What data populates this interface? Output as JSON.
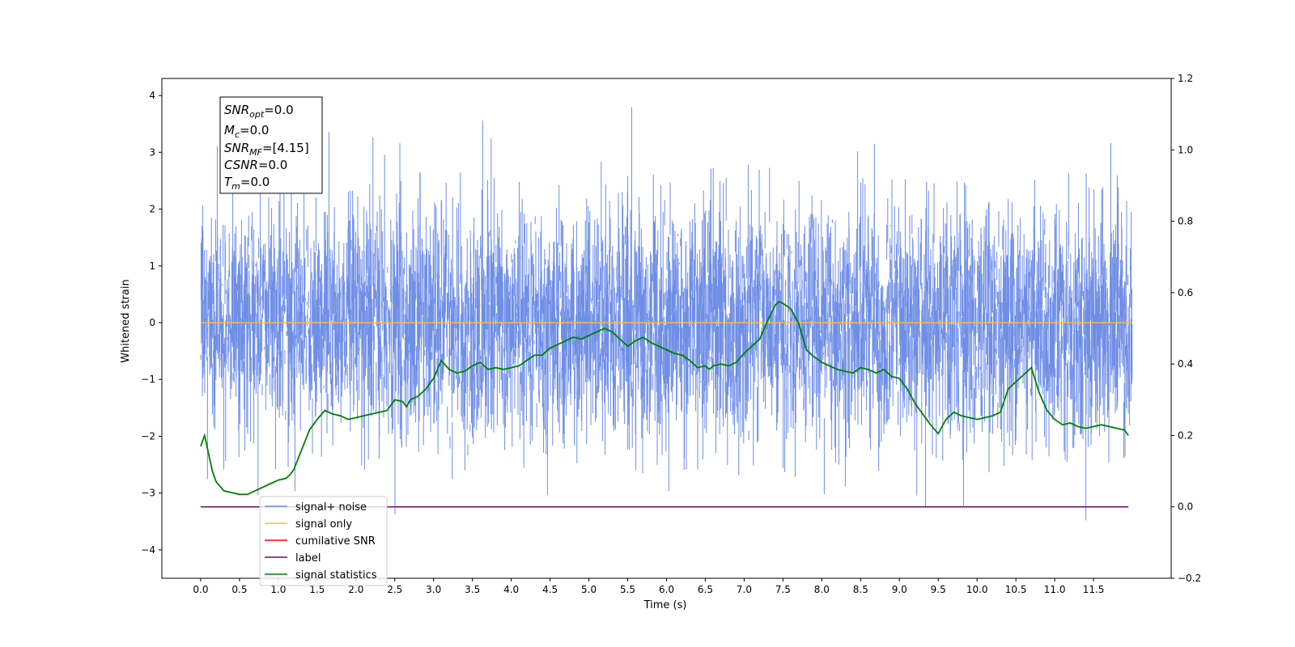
{
  "chart_data": {
    "type": "line",
    "xlabel": "Time (s)",
    "ylabel": "Whitened strain",
    "ylabel_right": "",
    "xlim": [
      -0.5,
      12.5
    ],
    "ylim": [
      -4.5,
      4.3
    ],
    "ylim_right": [
      -0.2,
      1.2
    ],
    "x_ticks": [
      0.0,
      0.5,
      1.0,
      1.5,
      2.0,
      2.5,
      3.0,
      3.5,
      4.0,
      4.5,
      5.0,
      5.5,
      6.0,
      6.5,
      7.0,
      7.5,
      8.0,
      8.5,
      9.0,
      9.5,
      10.0,
      10.5,
      11.0,
      11.5
    ],
    "x_tick_labels": [
      "0.0",
      "0.5",
      "1.0",
      "1.5",
      "2.0",
      "2.5",
      "3.0",
      "3.5",
      "4.0",
      "4.5",
      "5.0",
      "5.5",
      "6.0",
      "6.5",
      "7.0",
      "7.5",
      "8.0",
      "8.5",
      "9.0",
      "9.5",
      "10.0",
      "10.5",
      "11.0",
      "11.5"
    ],
    "y_ticks": [
      -4,
      -3,
      -2,
      -1,
      0,
      1,
      2,
      3,
      4
    ],
    "y_tick_labels": [
      "−4",
      "−3",
      "−2",
      "−1",
      "0",
      "1",
      "2",
      "3",
      "4"
    ],
    "y_ticks_right": [
      -0.2,
      0.0,
      0.2,
      0.4,
      0.6,
      0.8,
      1.0,
      1.2
    ],
    "y_tick_labels_right": [
      "−0.2",
      "0.0",
      "0.2",
      "0.4",
      "0.6",
      "0.8",
      "1.0",
      "1.2"
    ],
    "grid": false,
    "legend_position": "lower-left",
    "stats_box": {
      "snr_opt": {
        "base": "SNR",
        "sub": "opt",
        "value": "=0.0"
      },
      "mc": {
        "base": "M",
        "sub": "c",
        "value": "=0.0"
      },
      "snr_mf": {
        "base": "SNR",
        "sub": "MF",
        "value": "=[4.15]"
      },
      "csnr": {
        "base": "CSNR",
        "sub": "",
        "value": "=0.0"
      },
      "tm": {
        "base": "T",
        "sub": "m",
        "value": "=0.0"
      }
    },
    "series": [
      {
        "name": "signal+ noise",
        "axis": "left",
        "color": "#6f8ee6",
        "kind": "noise",
        "x_range": [
          0.0,
          12.0
        ],
        "sigma": 1.0,
        "max": 3.9,
        "min": -4.1
      },
      {
        "name": "signal only",
        "axis": "left",
        "color": "#f5b84a",
        "x": [
          0.0,
          12.0
        ],
        "y": [
          0.0,
          0.0
        ]
      },
      {
        "name": "cumilative SNR",
        "axis": "right",
        "color": "#ff0000",
        "x": [],
        "y": []
      },
      {
        "name": "label",
        "axis": "right",
        "color": "#6a0d6a",
        "x": [
          0.0,
          11.95
        ],
        "y": [
          0.0,
          0.0
        ]
      },
      {
        "name": "signal statistics",
        "axis": "right",
        "color": "#008000",
        "x": [
          0.0,
          0.05,
          0.1,
          0.15,
          0.2,
          0.3,
          0.4,
          0.5,
          0.6,
          0.7,
          0.8,
          0.9,
          1.0,
          1.1,
          1.15,
          1.2,
          1.3,
          1.4,
          1.5,
          1.6,
          1.7,
          1.8,
          1.9,
          2.0,
          2.1,
          2.2,
          2.3,
          2.4,
          2.5,
          2.6,
          2.65,
          2.7,
          2.8,
          2.9,
          3.0,
          3.05,
          3.1,
          3.2,
          3.3,
          3.4,
          3.5,
          3.6,
          3.7,
          3.8,
          3.9,
          4.0,
          4.1,
          4.2,
          4.3,
          4.4,
          4.5,
          4.6,
          4.7,
          4.8,
          4.9,
          5.0,
          5.1,
          5.2,
          5.3,
          5.4,
          5.5,
          5.6,
          5.7,
          5.8,
          5.9,
          6.0,
          6.1,
          6.2,
          6.3,
          6.4,
          6.5,
          6.55,
          6.6,
          6.7,
          6.8,
          6.9,
          7.0,
          7.1,
          7.2,
          7.3,
          7.4,
          7.45,
          7.5,
          7.6,
          7.7,
          7.8,
          7.9,
          8.0,
          8.1,
          8.2,
          8.3,
          8.4,
          8.5,
          8.6,
          8.7,
          8.8,
          8.9,
          9.0,
          9.1,
          9.2,
          9.3,
          9.4,
          9.5,
          9.6,
          9.7,
          9.8,
          9.9,
          10.0,
          10.1,
          10.2,
          10.3,
          10.4,
          10.5,
          10.6,
          10.7,
          10.75,
          10.8,
          10.9,
          11.0,
          11.1,
          11.2,
          11.3,
          11.4,
          11.5,
          11.6,
          11.7,
          11.8,
          11.9,
          11.95
        ],
        "y": [
          0.17,
          0.2,
          0.15,
          0.1,
          0.07,
          0.045,
          0.04,
          0.035,
          0.035,
          0.045,
          0.055,
          0.065,
          0.075,
          0.08,
          0.09,
          0.105,
          0.16,
          0.215,
          0.245,
          0.27,
          0.26,
          0.255,
          0.245,
          0.25,
          0.255,
          0.26,
          0.265,
          0.27,
          0.3,
          0.295,
          0.28,
          0.3,
          0.31,
          0.33,
          0.36,
          0.385,
          0.41,
          0.385,
          0.375,
          0.38,
          0.395,
          0.405,
          0.385,
          0.39,
          0.385,
          0.39,
          0.395,
          0.41,
          0.425,
          0.425,
          0.445,
          0.455,
          0.465,
          0.475,
          0.47,
          0.48,
          0.49,
          0.5,
          0.49,
          0.47,
          0.45,
          0.465,
          0.475,
          0.46,
          0.45,
          0.44,
          0.43,
          0.425,
          0.41,
          0.39,
          0.395,
          0.385,
          0.395,
          0.4,
          0.395,
          0.405,
          0.43,
          0.45,
          0.47,
          0.52,
          0.565,
          0.575,
          0.57,
          0.555,
          0.515,
          0.44,
          0.42,
          0.405,
          0.395,
          0.385,
          0.38,
          0.375,
          0.39,
          0.385,
          0.375,
          0.385,
          0.365,
          0.36,
          0.33,
          0.29,
          0.26,
          0.23,
          0.205,
          0.245,
          0.265,
          0.255,
          0.25,
          0.245,
          0.25,
          0.255,
          0.265,
          0.33,
          0.35,
          0.37,
          0.39,
          0.355,
          0.32,
          0.27,
          0.245,
          0.23,
          0.235,
          0.225,
          0.22,
          0.225,
          0.23,
          0.225,
          0.22,
          0.215,
          0.2
        ]
      }
    ]
  }
}
